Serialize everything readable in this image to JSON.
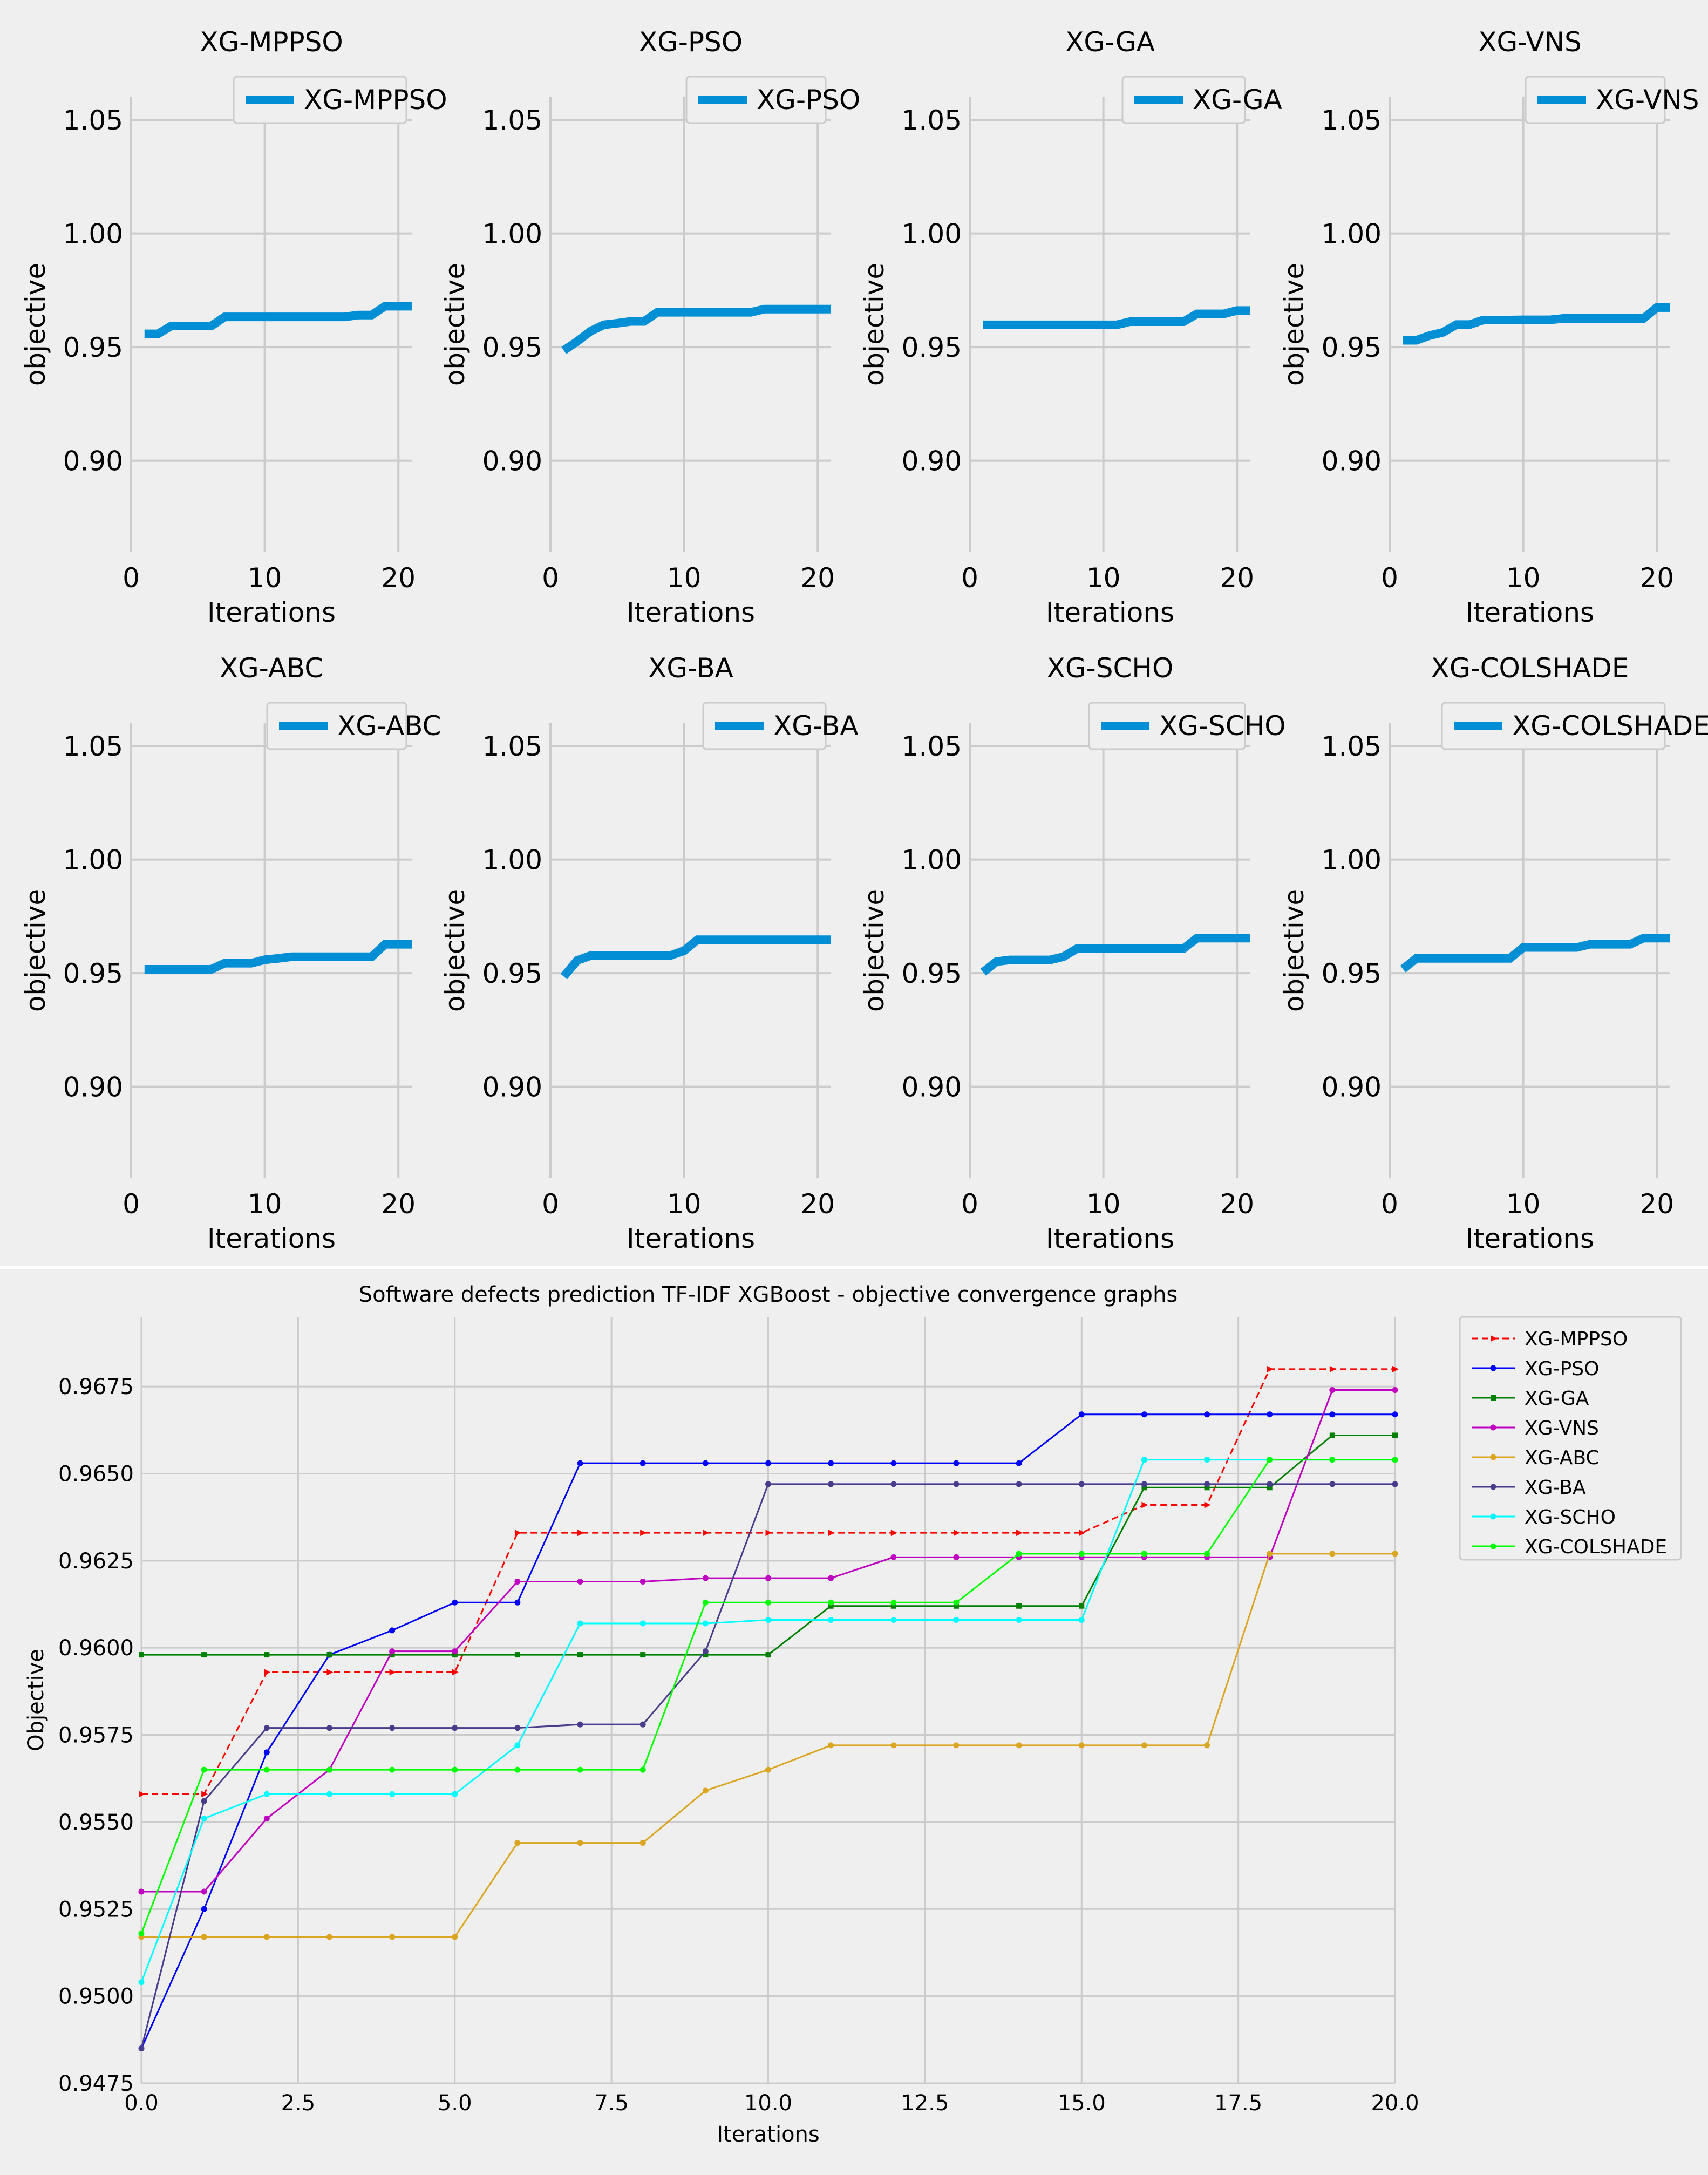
{
  "colors": {
    "panel_bg": "#efefef",
    "grid": "#cbcbcb",
    "small_line": "#008fd5",
    "page_bg": "#ffffff"
  },
  "chart_data": [
    {
      "type": "line",
      "title": "XG-MPPSO",
      "xlabel": "Iterations",
      "ylabel": "objective",
      "xlim": [
        0,
        21
      ],
      "ylim": [
        0.86,
        1.06
      ],
      "xticks": [
        0,
        10,
        20
      ],
      "yticks": [
        0.9,
        0.95,
        1.0,
        1.05
      ],
      "ytick_labels": [
        "0.90",
        "0.95",
        "1.00",
        "1.05"
      ],
      "legend": "XG-MPPSO",
      "x": [
        1,
        2,
        3,
        4,
        5,
        6,
        7,
        8,
        9,
        10,
        11,
        12,
        13,
        14,
        15,
        16,
        17,
        18,
        19,
        20,
        21
      ],
      "values": [
        0.9558,
        0.9558,
        0.9593,
        0.9593,
        0.9593,
        0.9593,
        0.9633,
        0.9633,
        0.9633,
        0.9633,
        0.9633,
        0.9633,
        0.9633,
        0.9633,
        0.9633,
        0.9633,
        0.9641,
        0.9641,
        0.968,
        0.968,
        0.968
      ]
    },
    {
      "type": "line",
      "title": "XG-PSO",
      "xlabel": "Iterations",
      "ylabel": "objective",
      "xlim": [
        0,
        21
      ],
      "ylim": [
        0.86,
        1.06
      ],
      "xticks": [
        0,
        10,
        20
      ],
      "yticks": [
        0.9,
        0.95,
        1.0,
        1.05
      ],
      "ytick_labels": [
        "0.90",
        "0.95",
        "1.00",
        "1.05"
      ],
      "legend": "XG-PSO",
      "x": [
        1,
        2,
        3,
        4,
        5,
        6,
        7,
        8,
        9,
        10,
        11,
        12,
        13,
        14,
        15,
        16,
        17,
        18,
        19,
        20,
        21
      ],
      "values": [
        0.9485,
        0.9525,
        0.957,
        0.9598,
        0.9605,
        0.9613,
        0.9613,
        0.9653,
        0.9653,
        0.9653,
        0.9653,
        0.9653,
        0.9653,
        0.9653,
        0.9653,
        0.9667,
        0.9667,
        0.9667,
        0.9667,
        0.9667,
        0.9667
      ]
    },
    {
      "type": "line",
      "title": "XG-GA",
      "xlabel": "Iterations",
      "ylabel": "objective",
      "xlim": [
        0,
        21
      ],
      "ylim": [
        0.86,
        1.06
      ],
      "xticks": [
        0,
        10,
        20
      ],
      "yticks": [
        0.9,
        0.95,
        1.0,
        1.05
      ],
      "ytick_labels": [
        "0.90",
        "0.95",
        "1.00",
        "1.05"
      ],
      "legend": "XG-GA",
      "x": [
        1,
        2,
        3,
        4,
        5,
        6,
        7,
        8,
        9,
        10,
        11,
        12,
        13,
        14,
        15,
        16,
        17,
        18,
        19,
        20,
        21
      ],
      "values": [
        0.9598,
        0.9598,
        0.9598,
        0.9598,
        0.9598,
        0.9598,
        0.9598,
        0.9598,
        0.9598,
        0.9598,
        0.9598,
        0.9612,
        0.9612,
        0.9612,
        0.9612,
        0.9612,
        0.9646,
        0.9646,
        0.9646,
        0.9661,
        0.9661
      ]
    },
    {
      "type": "line",
      "title": "XG-VNS",
      "xlabel": "Iterations",
      "ylabel": "objective",
      "xlim": [
        0,
        21
      ],
      "ylim": [
        0.86,
        1.06
      ],
      "xticks": [
        0,
        10,
        20
      ],
      "yticks": [
        0.9,
        0.95,
        1.0,
        1.05
      ],
      "ytick_labels": [
        "0.90",
        "0.95",
        "1.00",
        "1.05"
      ],
      "legend": "XG-VNS",
      "x": [
        1,
        2,
        3,
        4,
        5,
        6,
        7,
        8,
        9,
        10,
        11,
        12,
        13,
        14,
        15,
        16,
        17,
        18,
        19,
        20,
        21
      ],
      "values": [
        0.953,
        0.953,
        0.9551,
        0.9565,
        0.9599,
        0.9599,
        0.9619,
        0.9619,
        0.9619,
        0.962,
        0.962,
        0.962,
        0.9626,
        0.9626,
        0.9626,
        0.9626,
        0.9626,
        0.9626,
        0.9626,
        0.9674,
        0.9674
      ]
    },
    {
      "type": "line",
      "title": "XG-ABC",
      "xlabel": "Iterations",
      "ylabel": "objective",
      "xlim": [
        0,
        21
      ],
      "ylim": [
        0.86,
        1.06
      ],
      "xticks": [
        0,
        10,
        20
      ],
      "yticks": [
        0.9,
        0.95,
        1.0,
        1.05
      ],
      "ytick_labels": [
        "0.90",
        "0.95",
        "1.00",
        "1.05"
      ],
      "legend": "XG-ABC",
      "x": [
        1,
        2,
        3,
        4,
        5,
        6,
        7,
        8,
        9,
        10,
        11,
        12,
        13,
        14,
        15,
        16,
        17,
        18,
        19,
        20,
        21
      ],
      "values": [
        0.9517,
        0.9517,
        0.9517,
        0.9517,
        0.9517,
        0.9517,
        0.9544,
        0.9544,
        0.9544,
        0.9559,
        0.9565,
        0.9572,
        0.9572,
        0.9572,
        0.9572,
        0.9572,
        0.9572,
        0.9572,
        0.9627,
        0.9627,
        0.9627
      ]
    },
    {
      "type": "line",
      "title": "XG-BA",
      "xlabel": "Iterations",
      "ylabel": "objective",
      "xlim": [
        0,
        21
      ],
      "ylim": [
        0.86,
        1.06
      ],
      "xticks": [
        0,
        10,
        20
      ],
      "yticks": [
        0.9,
        0.95,
        1.0,
        1.05
      ],
      "ytick_labels": [
        "0.90",
        "0.95",
        "1.00",
        "1.05"
      ],
      "legend": "XG-BA",
      "x": [
        1,
        2,
        3,
        4,
        5,
        6,
        7,
        8,
        9,
        10,
        11,
        12,
        13,
        14,
        15,
        16,
        17,
        18,
        19,
        20,
        21
      ],
      "values": [
        0.9485,
        0.9556,
        0.9577,
        0.9577,
        0.9577,
        0.9577,
        0.9577,
        0.9578,
        0.9578,
        0.9599,
        0.9647,
        0.9647,
        0.9647,
        0.9647,
        0.9647,
        0.9647,
        0.9647,
        0.9647,
        0.9647,
        0.9647,
        0.9647
      ]
    },
    {
      "type": "line",
      "title": "XG-SCHO",
      "xlabel": "Iterations",
      "ylabel": "objective",
      "xlim": [
        0,
        21
      ],
      "ylim": [
        0.86,
        1.06
      ],
      "xticks": [
        0,
        10,
        20
      ],
      "yticks": [
        0.9,
        0.95,
        1.0,
        1.05
      ],
      "ytick_labels": [
        "0.90",
        "0.95",
        "1.00",
        "1.05"
      ],
      "legend": "XG-SCHO",
      "x": [
        1,
        2,
        3,
        4,
        5,
        6,
        7,
        8,
        9,
        10,
        11,
        12,
        13,
        14,
        15,
        16,
        17,
        18,
        19,
        20,
        21
      ],
      "values": [
        0.9504,
        0.9551,
        0.9558,
        0.9558,
        0.9558,
        0.9558,
        0.9572,
        0.9607,
        0.9607,
        0.9607,
        0.9608,
        0.9608,
        0.9608,
        0.9608,
        0.9608,
        0.9608,
        0.9654,
        0.9654,
        0.9654,
        0.9654,
        0.9654
      ]
    },
    {
      "type": "line",
      "title": "XG-COLSHADE",
      "xlabel": "Iterations",
      "ylabel": "objective",
      "xlim": [
        0,
        21
      ],
      "ylim": [
        0.86,
        1.06
      ],
      "xticks": [
        0,
        10,
        20
      ],
      "yticks": [
        0.9,
        0.95,
        1.0,
        1.05
      ],
      "ytick_labels": [
        "0.90",
        "0.95",
        "1.00",
        "1.05"
      ],
      "legend": "XG-COLSHADE",
      "x": [
        1,
        2,
        3,
        4,
        5,
        6,
        7,
        8,
        9,
        10,
        11,
        12,
        13,
        14,
        15,
        16,
        17,
        18,
        19,
        20,
        21
      ],
      "values": [
        0.9518,
        0.9565,
        0.9565,
        0.9565,
        0.9565,
        0.9565,
        0.9565,
        0.9565,
        0.9565,
        0.9613,
        0.9613,
        0.9613,
        0.9613,
        0.9613,
        0.9627,
        0.9627,
        0.9627,
        0.9627,
        0.9654,
        0.9654,
        0.9654
      ]
    },
    {
      "type": "line",
      "title": "Software defects prediction TF-IDF XGBoost -  objective convergence graphs",
      "xlabel": "Iterations",
      "ylabel": "Objective",
      "xlim": [
        0,
        20
      ],
      "ylim": [
        0.9475,
        0.9695
      ],
      "xticks": [
        0,
        2.5,
        5,
        7.5,
        10,
        12.5,
        15,
        17.5,
        20
      ],
      "xtick_labels": [
        "0.0",
        "2.5",
        "5.0",
        "7.5",
        "10.0",
        "12.5",
        "15.0",
        "17.5",
        "20.0"
      ],
      "yticks": [
        0.9475,
        0.95,
        0.9525,
        0.955,
        0.9575,
        0.96,
        0.9625,
        0.965,
        0.9675
      ],
      "ytick_labels": [
        "0.9475",
        "0.9500",
        "0.9525",
        "0.9550",
        "0.9575",
        "0.9600",
        "0.9625",
        "0.9650",
        "0.9675"
      ],
      "legend_position": "upper right, outside",
      "x": [
        0,
        1,
        2,
        3,
        4,
        5,
        6,
        7,
        8,
        9,
        10,
        11,
        12,
        13,
        14,
        15,
        16,
        17,
        18,
        19,
        20
      ],
      "series": [
        {
          "name": "XG-MPPSO",
          "color": "#ff0000",
          "dashed": true,
          "marker": "triangle",
          "values": [
            0.9558,
            0.9558,
            0.9593,
            0.9593,
            0.9593,
            0.9593,
            0.9633,
            0.9633,
            0.9633,
            0.9633,
            0.9633,
            0.9633,
            0.9633,
            0.9633,
            0.9633,
            0.9633,
            0.9641,
            0.9641,
            0.968,
            0.968,
            0.968
          ]
        },
        {
          "name": "XG-PSO",
          "color": "#0000ff",
          "dashed": false,
          "marker": "dot",
          "values": [
            0.9485,
            0.9525,
            0.957,
            0.9598,
            0.9605,
            0.9613,
            0.9613,
            0.9653,
            0.9653,
            0.9653,
            0.9653,
            0.9653,
            0.9653,
            0.9653,
            0.9653,
            0.9667,
            0.9667,
            0.9667,
            0.9667,
            0.9667,
            0.9667
          ]
        },
        {
          "name": "XG-GA",
          "color": "#008000",
          "dashed": false,
          "marker": "square",
          "values": [
            0.9598,
            0.9598,
            0.9598,
            0.9598,
            0.9598,
            0.9598,
            0.9598,
            0.9598,
            0.9598,
            0.9598,
            0.9598,
            0.9612,
            0.9612,
            0.9612,
            0.9612,
            0.9612,
            0.9646,
            0.9646,
            0.9646,
            0.9661,
            0.9661
          ]
        },
        {
          "name": "XG-VNS",
          "color": "#c000c0",
          "dashed": false,
          "marker": "dot",
          "values": [
            0.953,
            0.953,
            0.9551,
            0.9565,
            0.9599,
            0.9599,
            0.9619,
            0.9619,
            0.9619,
            0.962,
            0.962,
            0.962,
            0.9626,
            0.9626,
            0.9626,
            0.9626,
            0.9626,
            0.9626,
            0.9626,
            0.9674,
            0.9674
          ]
        },
        {
          "name": "XG-ABC",
          "color": "#daa520",
          "dashed": false,
          "marker": "dot",
          "values": [
            0.9517,
            0.9517,
            0.9517,
            0.9517,
            0.9517,
            0.9517,
            0.9544,
            0.9544,
            0.9544,
            0.9559,
            0.9565,
            0.9572,
            0.9572,
            0.9572,
            0.9572,
            0.9572,
            0.9572,
            0.9572,
            0.9627,
            0.9627,
            0.9627
          ]
        },
        {
          "name": "XG-BA",
          "color": "#483d8b",
          "dashed": false,
          "marker": "dot",
          "values": [
            0.9485,
            0.9556,
            0.9577,
            0.9577,
            0.9577,
            0.9577,
            0.9577,
            0.9578,
            0.9578,
            0.9599,
            0.9647,
            0.9647,
            0.9647,
            0.9647,
            0.9647,
            0.9647,
            0.9647,
            0.9647,
            0.9647,
            0.9647,
            0.9647
          ]
        },
        {
          "name": "XG-SCHO",
          "color": "#00ffff",
          "dashed": false,
          "marker": "dot",
          "values": [
            0.9504,
            0.9551,
            0.9558,
            0.9558,
            0.9558,
            0.9558,
            0.9572,
            0.9607,
            0.9607,
            0.9607,
            0.9608,
            0.9608,
            0.9608,
            0.9608,
            0.9608,
            0.9608,
            0.9654,
            0.9654,
            0.9654,
            0.9654,
            0.9654
          ]
        },
        {
          "name": "XG-COLSHADE",
          "color": "#00ff00",
          "dashed": false,
          "marker": "dot",
          "values": [
            0.9518,
            0.9565,
            0.9565,
            0.9565,
            0.9565,
            0.9565,
            0.9565,
            0.9565,
            0.9565,
            0.9613,
            0.9613,
            0.9613,
            0.9613,
            0.9613,
            0.9627,
            0.9627,
            0.9627,
            0.9627,
            0.9654,
            0.9654,
            0.9654
          ]
        }
      ]
    }
  ]
}
